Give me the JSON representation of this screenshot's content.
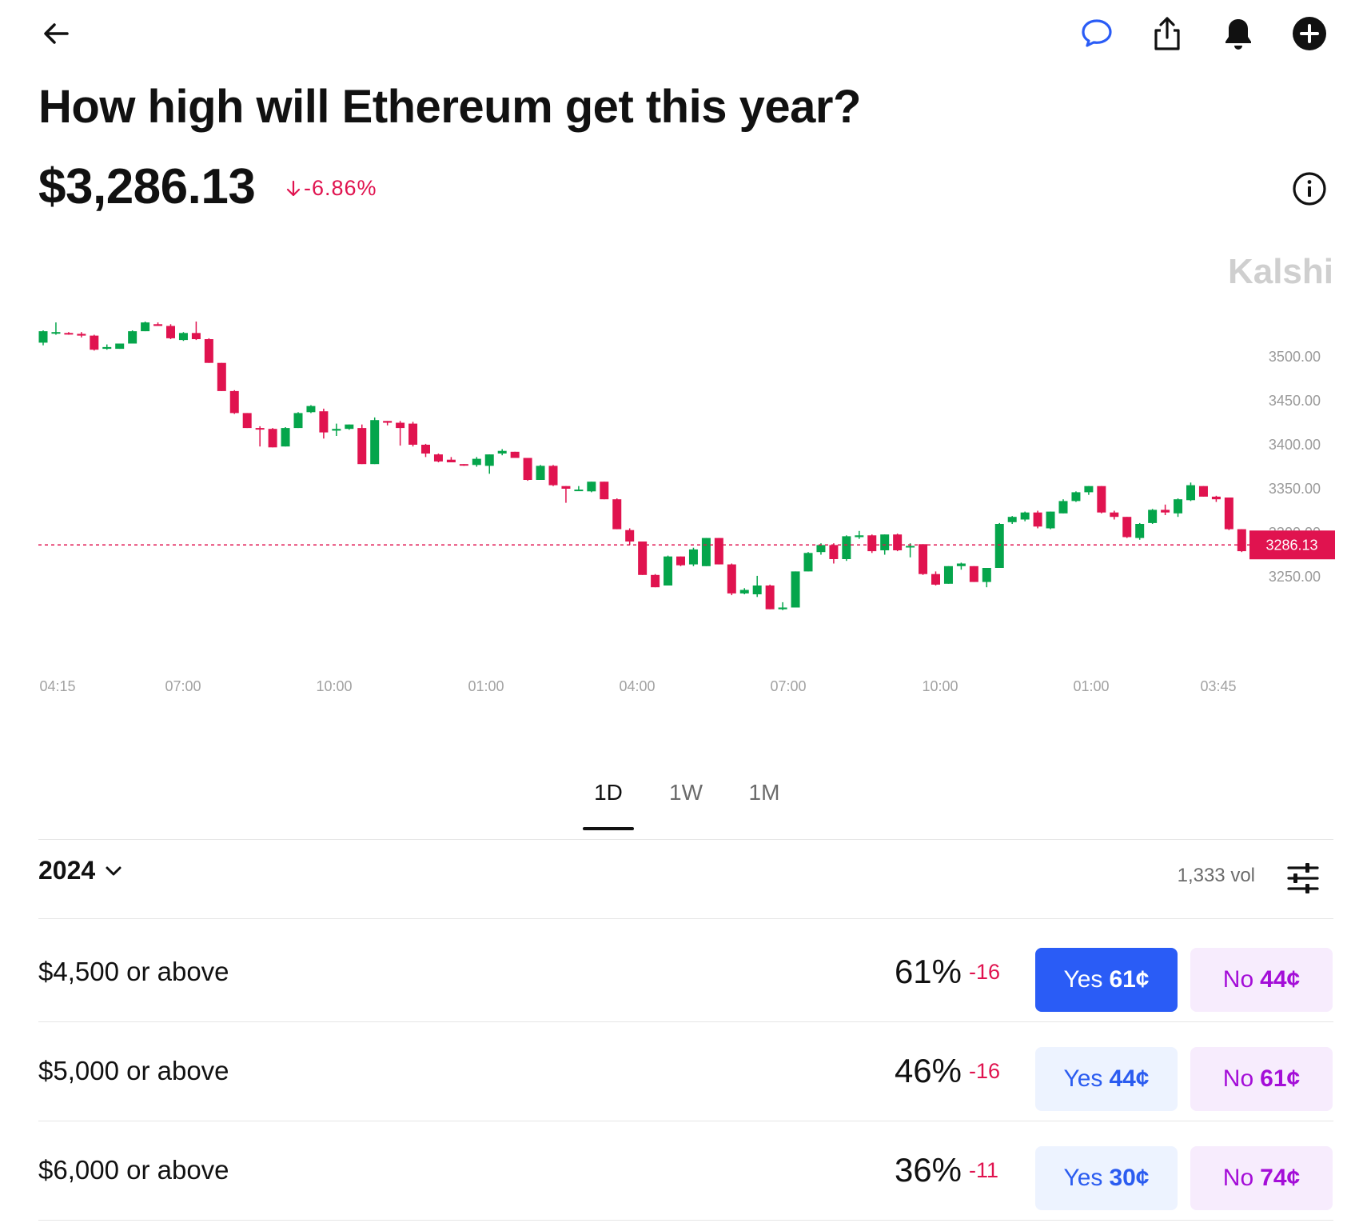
{
  "header": {
    "title": "How high will Ethereum get this year?",
    "price": "$3,286.13",
    "change": "-6.86%"
  },
  "icons": {
    "back": "back-arrow-icon",
    "comment": "comment-icon",
    "share": "share-icon",
    "bell": "bell-icon",
    "add": "plus-circle-icon",
    "info": "info-icon",
    "filter": "filter-sliders-icon",
    "chevron": "chevron-down-icon"
  },
  "colors": {
    "up": "#05a54b",
    "down": "#e0134f",
    "accent_blue": "#2a5cf6",
    "no_purple": "#a40ed8"
  },
  "chart_data": {
    "type": "candlestick",
    "watermark": "Kalshi",
    "current_price_label": "3286.13",
    "current_price": 3286.13,
    "ylim": [
      3210,
      3560
    ],
    "yticks": [
      "3500.00",
      "3450.00",
      "3400.00",
      "3350.00",
      "3300.00",
      "3250.00"
    ],
    "xticks": [
      "04:15",
      "07:00",
      "10:00",
      "01:00",
      "04:00",
      "07:00",
      "10:00",
      "01:00",
      "03:45"
    ],
    "candles": [
      {
        "o": 3516,
        "h": 3530,
        "l": 3513,
        "c": 3529
      },
      {
        "o": 3528,
        "h": 3539,
        "l": 3525,
        "c": 3528
      },
      {
        "o": 3527,
        "h": 3528,
        "l": 3525,
        "c": 3526
      },
      {
        "o": 3526,
        "h": 3528,
        "l": 3522,
        "c": 3524
      },
      {
        "o": 3524,
        "h": 3525,
        "l": 3507,
        "c": 3508
      },
      {
        "o": 3509,
        "h": 3514,
        "l": 3508,
        "c": 3511
      },
      {
        "o": 3509,
        "h": 3515,
        "l": 3509,
        "c": 3515
      },
      {
        "o": 3515,
        "h": 3530,
        "l": 3515,
        "c": 3529
      },
      {
        "o": 3529,
        "h": 3540,
        "l": 3529,
        "c": 3539
      },
      {
        "o": 3537,
        "h": 3539,
        "l": 3535,
        "c": 3535
      },
      {
        "o": 3535,
        "h": 3537,
        "l": 3520,
        "c": 3521
      },
      {
        "o": 3519,
        "h": 3528,
        "l": 3518,
        "c": 3527
      },
      {
        "o": 3527,
        "h": 3540,
        "l": 3519,
        "c": 3520
      },
      {
        "o": 3520,
        "h": 3521,
        "l": 3493,
        "c": 3493
      },
      {
        "o": 3493,
        "h": 3493,
        "l": 3461,
        "c": 3461
      },
      {
        "o": 3461,
        "h": 3462,
        "l": 3435,
        "c": 3436
      },
      {
        "o": 3436,
        "h": 3436,
        "l": 3419,
        "c": 3419
      },
      {
        "o": 3419,
        "h": 3421,
        "l": 3398,
        "c": 3418
      },
      {
        "o": 3418,
        "h": 3419,
        "l": 3397,
        "c": 3397
      },
      {
        "o": 3398,
        "h": 3420,
        "l": 3398,
        "c": 3419
      },
      {
        "o": 3419,
        "h": 3437,
        "l": 3419,
        "c": 3436
      },
      {
        "o": 3437,
        "h": 3445,
        "l": 3436,
        "c": 3444
      },
      {
        "o": 3438,
        "h": 3441,
        "l": 3407,
        "c": 3414
      },
      {
        "o": 3416,
        "h": 3424,
        "l": 3410,
        "c": 3418
      },
      {
        "o": 3418,
        "h": 3423,
        "l": 3417,
        "c": 3423
      },
      {
        "o": 3419,
        "h": 3423,
        "l": 3378,
        "c": 3378
      },
      {
        "o": 3378,
        "h": 3431,
        "l": 3378,
        "c": 3428
      },
      {
        "o": 3427,
        "h": 3427,
        "l": 3422,
        "c": 3425
      },
      {
        "o": 3425,
        "h": 3427,
        "l": 3399,
        "c": 3419
      },
      {
        "o": 3424,
        "h": 3426,
        "l": 3398,
        "c": 3400
      },
      {
        "o": 3400,
        "h": 3401,
        "l": 3386,
        "c": 3390
      },
      {
        "o": 3389,
        "h": 3390,
        "l": 3380,
        "c": 3381
      },
      {
        "o": 3383,
        "h": 3386,
        "l": 3380,
        "c": 3380
      },
      {
        "o": 3378,
        "h": 3378,
        "l": 3376,
        "c": 3377
      },
      {
        "o": 3377,
        "h": 3386,
        "l": 3375,
        "c": 3384
      },
      {
        "o": 3376,
        "h": 3389,
        "l": 3367,
        "c": 3389
      },
      {
        "o": 3390,
        "h": 3395,
        "l": 3388,
        "c": 3393
      },
      {
        "o": 3392,
        "h": 3392,
        "l": 3386,
        "c": 3385
      },
      {
        "o": 3385,
        "h": 3385,
        "l": 3359,
        "c": 3360
      },
      {
        "o": 3360,
        "h": 3377,
        "l": 3360,
        "c": 3376
      },
      {
        "o": 3376,
        "h": 3377,
        "l": 3353,
        "c": 3354
      },
      {
        "o": 3353,
        "h": 3353,
        "l": 3334,
        "c": 3350
      },
      {
        "o": 3349,
        "h": 3353,
        "l": 3348,
        "c": 3349
      },
      {
        "o": 3347,
        "h": 3358,
        "l": 3346,
        "c": 3358
      },
      {
        "o": 3358,
        "h": 3358,
        "l": 3338,
        "c": 3338
      },
      {
        "o": 3338,
        "h": 3339,
        "l": 3304,
        "c": 3304
      },
      {
        "o": 3303,
        "h": 3305,
        "l": 3286,
        "c": 3290
      },
      {
        "o": 3290,
        "h": 3290,
        "l": 3252,
        "c": 3252
      },
      {
        "o": 3252,
        "h": 3253,
        "l": 3238,
        "c": 3238
      },
      {
        "o": 3240,
        "h": 3274,
        "l": 3240,
        "c": 3273
      },
      {
        "o": 3273,
        "h": 3273,
        "l": 3262,
        "c": 3263
      },
      {
        "o": 3264,
        "h": 3283,
        "l": 3262,
        "c": 3281
      },
      {
        "o": 3262,
        "h": 3294,
        "l": 3262,
        "c": 3294
      },
      {
        "o": 3294,
        "h": 3294,
        "l": 3264,
        "c": 3264
      },
      {
        "o": 3264,
        "h": 3265,
        "l": 3229,
        "c": 3231
      },
      {
        "o": 3231,
        "h": 3237,
        "l": 3230,
        "c": 3235
      },
      {
        "o": 3230,
        "h": 3251,
        "l": 3227,
        "c": 3240
      },
      {
        "o": 3240,
        "h": 3241,
        "l": 3213,
        "c": 3213
      },
      {
        "o": 3213,
        "h": 3221,
        "l": 3212,
        "c": 3215
      },
      {
        "o": 3215,
        "h": 3256,
        "l": 3215,
        "c": 3256
      },
      {
        "o": 3256,
        "h": 3278,
        "l": 3256,
        "c": 3277
      },
      {
        "o": 3278,
        "h": 3288,
        "l": 3275,
        "c": 3286
      },
      {
        "o": 3286,
        "h": 3288,
        "l": 3265,
        "c": 3270
      },
      {
        "o": 3270,
        "h": 3297,
        "l": 3268,
        "c": 3296
      },
      {
        "o": 3295,
        "h": 3302,
        "l": 3293,
        "c": 3297
      },
      {
        "o": 3297,
        "h": 3298,
        "l": 3277,
        "c": 3279
      },
      {
        "o": 3280,
        "h": 3298,
        "l": 3275,
        "c": 3298
      },
      {
        "o": 3298,
        "h": 3299,
        "l": 3279,
        "c": 3280
      },
      {
        "o": 3284,
        "h": 3288,
        "l": 3272,
        "c": 3285
      },
      {
        "o": 3287,
        "h": 3287,
        "l": 3252,
        "c": 3253
      },
      {
        "o": 3253,
        "h": 3256,
        "l": 3240,
        "c": 3241
      },
      {
        "o": 3242,
        "h": 3262,
        "l": 3242,
        "c": 3262
      },
      {
        "o": 3262,
        "h": 3266,
        "l": 3258,
        "c": 3265
      },
      {
        "o": 3262,
        "h": 3262,
        "l": 3244,
        "c": 3244
      },
      {
        "o": 3244,
        "h": 3260,
        "l": 3238,
        "c": 3260
      },
      {
        "o": 3260,
        "h": 3311,
        "l": 3260,
        "c": 3310
      },
      {
        "o": 3312,
        "h": 3319,
        "l": 3310,
        "c": 3318
      },
      {
        "o": 3315,
        "h": 3324,
        "l": 3313,
        "c": 3323
      },
      {
        "o": 3323,
        "h": 3325,
        "l": 3305,
        "c": 3307
      },
      {
        "o": 3305,
        "h": 3324,
        "l": 3304,
        "c": 3324
      },
      {
        "o": 3322,
        "h": 3338,
        "l": 3322,
        "c": 3336
      },
      {
        "o": 3336,
        "h": 3347,
        "l": 3335,
        "c": 3346
      },
      {
        "o": 3346,
        "h": 3353,
        "l": 3343,
        "c": 3353
      },
      {
        "o": 3353,
        "h": 3353,
        "l": 3322,
        "c": 3323
      },
      {
        "o": 3323,
        "h": 3325,
        "l": 3315,
        "c": 3318
      },
      {
        "o": 3318,
        "h": 3318,
        "l": 3294,
        "c": 3295
      },
      {
        "o": 3294,
        "h": 3311,
        "l": 3292,
        "c": 3310
      },
      {
        "o": 3311,
        "h": 3327,
        "l": 3310,
        "c": 3326
      },
      {
        "o": 3326,
        "h": 3332,
        "l": 3320,
        "c": 3323
      },
      {
        "o": 3322,
        "h": 3339,
        "l": 3318,
        "c": 3338
      },
      {
        "o": 3337,
        "h": 3357,
        "l": 3336,
        "c": 3354
      },
      {
        "o": 3353,
        "h": 3353,
        "l": 3341,
        "c": 3341
      },
      {
        "o": 3341,
        "h": 3342,
        "l": 3335,
        "c": 3338
      },
      {
        "o": 3340,
        "h": 3340,
        "l": 3303,
        "c": 3304
      },
      {
        "o": 3304,
        "h": 3304,
        "l": 3278,
        "c": 3279
      },
      {
        "o": 3279,
        "h": 3297,
        "l": 3278,
        "c": 3290
      },
      {
        "o": 3290,
        "h": 3292,
        "l": 3283,
        "c": 3286
      }
    ]
  },
  "timeframe_tabs": [
    {
      "label": "1D",
      "active": true
    },
    {
      "label": "1W",
      "active": false
    },
    {
      "label": "1M",
      "active": false
    }
  ],
  "market": {
    "year": "2024",
    "volume": "1,333 vol",
    "rows": [
      {
        "label": "$4,500 or above",
        "pct": "61%",
        "delta": "-16",
        "yes_label": "Yes",
        "yes_price": "61¢",
        "no_label": "No",
        "no_price": "44¢",
        "yes_selected": true
      },
      {
        "label": "$5,000 or above",
        "pct": "46%",
        "delta": "-16",
        "yes_label": "Yes",
        "yes_price": "44¢",
        "no_label": "No",
        "no_price": "61¢",
        "yes_selected": false
      },
      {
        "label": "$6,000 or above",
        "pct": "36%",
        "delta": "-11",
        "yes_label": "Yes",
        "yes_price": "30¢",
        "no_label": "No",
        "no_price": "74¢",
        "yes_selected": false
      }
    ]
  }
}
